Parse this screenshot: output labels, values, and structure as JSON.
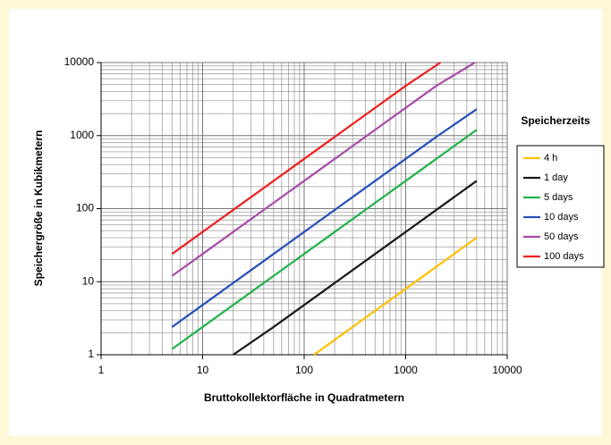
{
  "chart_data": {
    "type": "line",
    "xlabel": "Bruttokollektorfläche in Quadratmetern",
    "ylabel": "Speichergröße in Kubikmetern",
    "xscale": "log",
    "yscale": "log",
    "xlim": [
      1,
      10000
    ],
    "ylim": [
      1,
      10000
    ],
    "xticks": [
      1,
      10,
      100,
      1000,
      10000
    ],
    "yticks": [
      1,
      10,
      100,
      1000,
      10000
    ],
    "grid": true,
    "minor_grid": true,
    "legend_title": "Speicherzeits",
    "legend": "right",
    "series": [
      {
        "name": "4 h",
        "color": "#ffc000",
        "x": [
          125,
          200,
          500,
          1000,
          2000,
          5000
        ],
        "values": [
          1,
          1.6,
          4,
          8,
          16,
          40
        ]
      },
      {
        "name": "1 day",
        "color": "#1a1a1a",
        "x": [
          20,
          50,
          100,
          200,
          500,
          1000,
          2000,
          5000
        ],
        "values": [
          1,
          2.4,
          4.8,
          9.6,
          24,
          48,
          96,
          240
        ]
      },
      {
        "name": "5 days",
        "color": "#22b24c",
        "x": [
          5,
          10,
          20,
          50,
          100,
          200,
          500,
          1000,
          2000,
          5000
        ],
        "values": [
          1.2,
          2.4,
          4.8,
          12,
          24,
          48,
          120,
          240,
          480,
          1200
        ]
      },
      {
        "name": "10 days",
        "color": "#2850b8",
        "x": [
          5,
          10,
          20,
          50,
          100,
          200,
          500,
          1000,
          2000,
          5000
        ],
        "values": [
          2.4,
          4.8,
          9.6,
          24,
          48,
          96,
          240,
          480,
          960,
          2300
        ]
      },
      {
        "name": "50 days",
        "color": "#a84ca8",
        "x": [
          5,
          10,
          20,
          50,
          100,
          200,
          500,
          1000,
          2000,
          4800
        ],
        "values": [
          12,
          24,
          48,
          120,
          240,
          480,
          1200,
          2400,
          4800,
          10000
        ]
      },
      {
        "name": "100 days",
        "color": "#ee2020",
        "x": [
          5,
          10,
          20,
          50,
          100,
          200,
          500,
          1000,
          2200
        ],
        "values": [
          24,
          48,
          96,
          240,
          480,
          960,
          2400,
          4800,
          10000
        ]
      }
    ]
  }
}
